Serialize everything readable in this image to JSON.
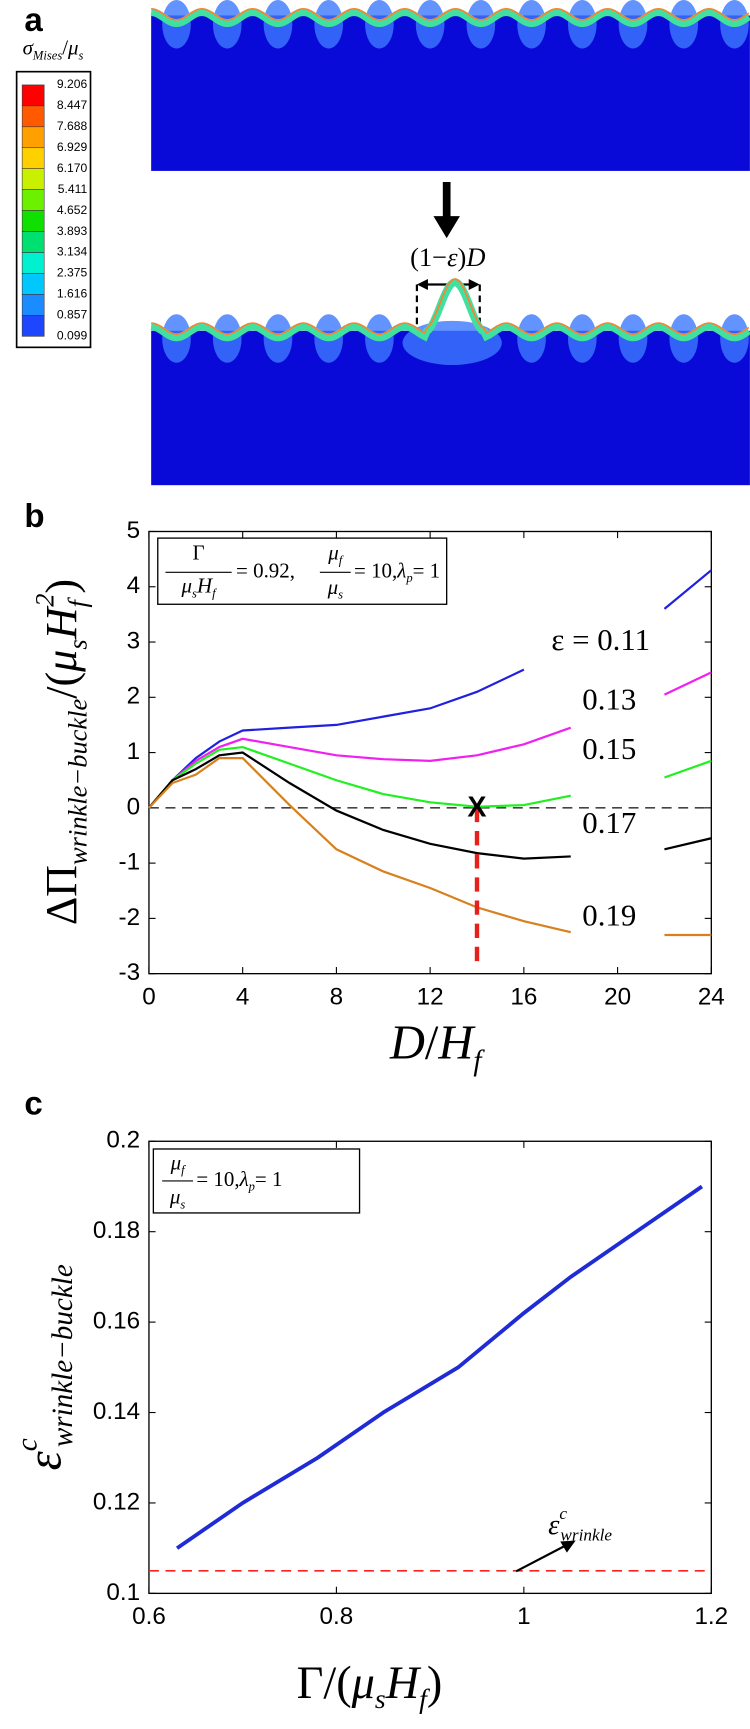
{
  "panel_a": {
    "label": "a",
    "colorbar_title": [
      "σ",
      "Mises",
      "/",
      "μ",
      "s"
    ],
    "colorbar": {
      "values": [
        9.206,
        8.447,
        7.688,
        6.929,
        {
          "value": 6.17,
          "label": "6.170"
        },
        5.411,
        4.652,
        3.893,
        3.134,
        2.375,
        1.616,
        0.857,
        0.099
      ],
      "colors": [
        "#ff0000",
        "#ff5a00",
        "#ffa000",
        "#ffd000",
        "#c8f000",
        "#6cf000",
        "#10e000",
        "#00e070",
        "#00f0d0",
        "#00c8ff",
        "#1a8cff",
        "#1e46ff",
        "#0000f0"
      ]
    },
    "strain_label": [
      "(1−",
      "ε",
      ")",
      "D"
    ]
  },
  "chart_data": [
    {
      "panel_label": "b",
      "type": "line",
      "x": [
        0,
        1,
        2,
        3,
        4,
        6,
        8,
        10,
        12,
        14,
        16,
        18,
        20,
        22,
        24
      ],
      "series": [
        {
          "name": "ε = 0.11",
          "color": "#2020e0",
          "values": [
            0,
            0.5,
            0.9,
            1.2,
            1.4,
            1.45,
            1.5,
            1.65,
            1.8,
            2.1,
            2.5,
            null,
            null,
            3.6,
            4.3
          ]
        },
        {
          "name": "0.13",
          "color": "#f020f0",
          "values": [
            0,
            0.5,
            0.85,
            1.1,
            1.25,
            1.1,
            0.95,
            0.88,
            0.85,
            0.95,
            1.15,
            1.45,
            null,
            2.05,
            2.45
          ]
        },
        {
          "name": "0.15",
          "color": "#20f020",
          "values": [
            0,
            0.5,
            0.8,
            1.05,
            1.1,
            0.8,
            0.5,
            0.25,
            0.1,
            0.02,
            0.05,
            0.22,
            null,
            0.55,
            0.85
          ]
        },
        {
          "name": "0.17",
          "color": "#000000",
          "values": [
            0,
            0.5,
            0.7,
            0.95,
            1.0,
            0.45,
            -0.05,
            -0.4,
            -0.65,
            -0.82,
            -0.92,
            -0.88,
            null,
            -0.75,
            -0.55
          ]
        },
        {
          "name": "0.19",
          "color": "#d8801e",
          "values": [
            0,
            0.45,
            0.6,
            0.9,
            0.9,
            0.05,
            -0.75,
            -1.15,
            -1.45,
            -1.8,
            -2.05,
            -2.25,
            null,
            -2.3,
            -2.3
          ]
        }
      ],
      "xlim": [
        0,
        24
      ],
      "ylim": [
        -3,
        5
      ],
      "xticks": [
        0,
        4,
        8,
        12,
        16,
        20,
        24
      ],
      "yticks": [
        -3,
        -2,
        -1,
        0,
        1,
        2,
        3,
        4,
        5
      ],
      "xlabel": [
        "D",
        "/",
        "H",
        "f"
      ],
      "ylabel": [
        "ΔΠ",
        "wrinkle−buckle",
        "/(",
        "μ",
        "s",
        "H",
        "f",
        "2",
        ")"
      ],
      "inset": [
        "Γ",
        "μ",
        "s",
        "H",
        "f",
        "= 0.92,",
        "μ",
        "f",
        "μ",
        "s",
        "= 10,",
        "λ",
        "p",
        "= 1"
      ],
      "hline": {
        "value": 0,
        "color": "#444444"
      },
      "marker": {
        "label": "X",
        "x": 14,
        "y": 0,
        "color": "#e8201c"
      }
    },
    {
      "panel_label": "c",
      "type": "line",
      "x": [
        0.63,
        0.7,
        0.78,
        0.85,
        0.93,
        1.0,
        1.05,
        1.12,
        1.19
      ],
      "series": [
        {
          "color": "#1f2bd4",
          "values": [
            0.11,
            0.12,
            0.13,
            0.14,
            0.15,
            0.162,
            0.17,
            0.18,
            0.19
          ]
        }
      ],
      "xlim": [
        0.6,
        1.2
      ],
      "ylim": [
        0.1,
        0.2
      ],
      "xticks": [
        0.6,
        0.8,
        1,
        1.2
      ],
      "yticks": [
        0.1,
        0.12,
        0.14,
        0.16,
        0.18,
        0.2
      ],
      "xlabel": [
        "Γ",
        "/(",
        "μ",
        "s",
        "H",
        "f",
        ")"
      ],
      "ylabel": [
        "ε",
        "c",
        "wrinkle−buckle"
      ],
      "inset": [
        "μ",
        "f",
        "μ",
        "s",
        "= 10,",
        "λ",
        "p",
        "= 1"
      ],
      "hline": {
        "value": 0.105,
        "color": "#ff2020"
      },
      "annotation": [
        "ε",
        "c",
        "wrinkle"
      ]
    }
  ]
}
